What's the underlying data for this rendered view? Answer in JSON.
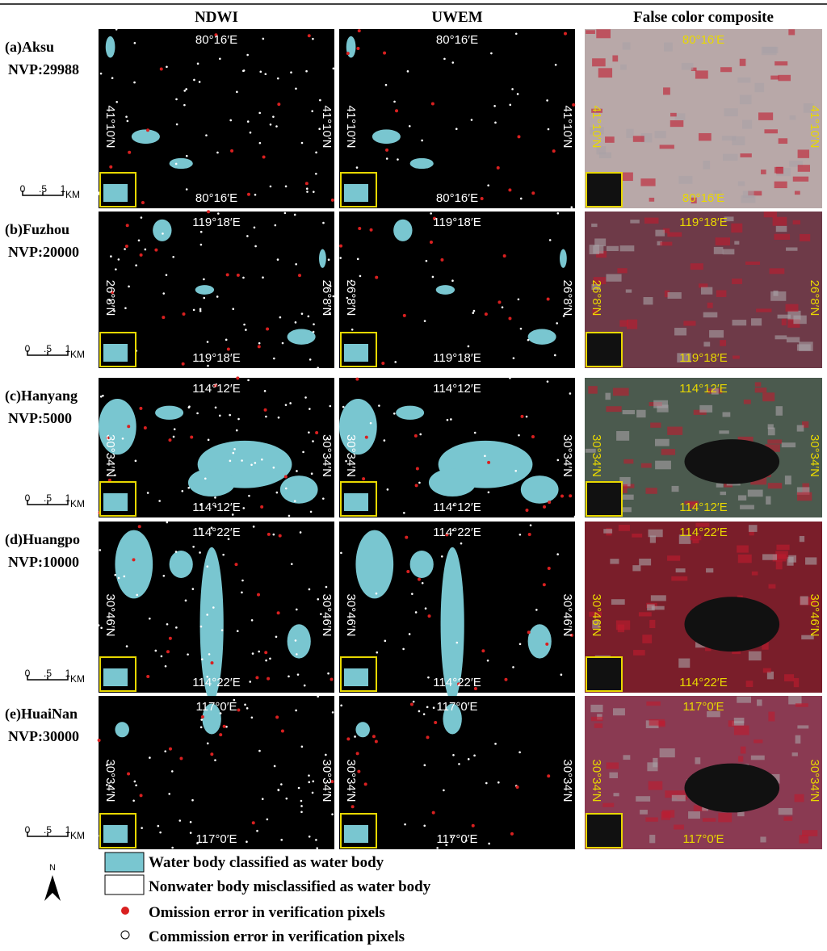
{
  "header": {
    "columns": [
      "NDWI",
      "UWEM",
      "False color composite"
    ]
  },
  "rows": [
    {
      "label": "(a)Aksu",
      "nvp": "NVP:29988",
      "scale": {
        "ticks": [
          "0",
          ".5",
          "1"
        ],
        "unit": "KM"
      },
      "coords": {
        "top": "80°16′E",
        "bottom": "80°16′E",
        "left": "41°10′N",
        "right": "41°10′N"
      }
    },
    {
      "label": "(b)Fuzhou",
      "nvp": "NVP:20000",
      "scale": {
        "ticks": [
          "0",
          ".5",
          "1"
        ],
        "unit": "KM"
      },
      "coords": {
        "top": "119°18′E",
        "bottom": "119°18′E",
        "left": "26°8′N",
        "right": "26°8′N"
      }
    },
    {
      "label": "(c)Hanyang",
      "nvp": "NVP:5000",
      "scale": {
        "ticks": [
          "0",
          ".5",
          "1"
        ],
        "unit": "KM"
      },
      "coords": {
        "top": "114°12′E",
        "bottom": "114°12′E",
        "left": "30°34′N",
        "right": "30°34′N"
      }
    },
    {
      "label": "(d)Huangpo",
      "nvp": "NVP:10000",
      "scale": {
        "ticks": [
          "0",
          ".5",
          "1"
        ],
        "unit": "KM"
      },
      "coords": {
        "top": "114°22′E",
        "bottom": "114°22′E",
        "left": "30°46′N",
        "right": "30°46′N"
      }
    },
    {
      "label": "(e)HuaiNan",
      "nvp": "NVP:30000",
      "scale": {
        "ticks": [
          "0",
          ".5",
          "1"
        ],
        "unit": "KM"
      },
      "coords": {
        "top": "117°0′E",
        "bottom": "117°0′E",
        "left": "30°34′N",
        "right": "30°34′N"
      }
    }
  ],
  "legend": [
    "Water body classified as water body",
    "Nonwater body misclassified as water body",
    "Omission error in verification pixels",
    "Commission error in verification pixels"
  ],
  "north": "N"
}
